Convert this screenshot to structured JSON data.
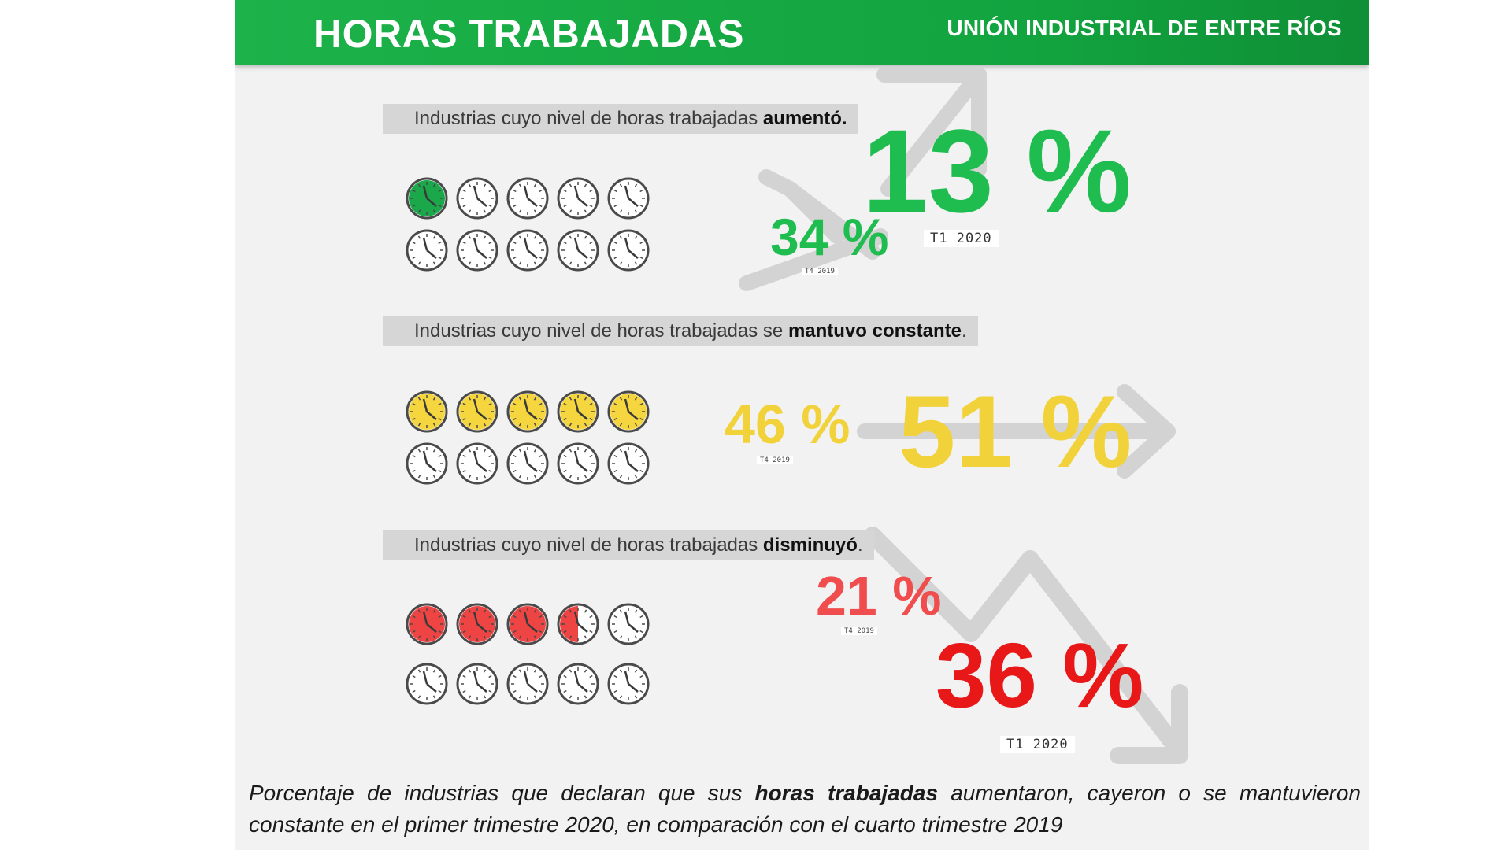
{
  "header": {
    "title": "HORAS TRABAJADAS",
    "organization": "UNIÓN INDUSTRIAL DE ENTRE RÍOS"
  },
  "colors": {
    "header_green": "#1db24a",
    "green": "#1fbd4f",
    "yellow": "#f2d23a",
    "red_prev": "#f04e4e",
    "red_cur": "#e81818",
    "clock_filled_red": "#ef4444",
    "arrow_gray": "#d3d3d3"
  },
  "sections": [
    {
      "label_prefix": "Industrias cuyo nivel de horas trabajadas ",
      "label_bold": "aumentó.",
      "label_suffix": "",
      "clocks_filled": 1,
      "clocks_total": 10,
      "fill_color": "#1aa84a",
      "prev_value": "34 %",
      "prev_period": "T4 2019",
      "cur_value": "13 %",
      "cur_period": "T1 2020",
      "trend": "up"
    },
    {
      "label_prefix": "Industrias cuyo nivel de horas trabajadas se ",
      "label_bold": "mantuvo constante",
      "label_suffix": ".",
      "clocks_filled": 5,
      "clocks_total": 10,
      "fill_color": "#f5d63f",
      "prev_value": "46 %",
      "prev_period": "T4 2019",
      "cur_value": "51 %",
      "cur_period": "",
      "trend": "flat"
    },
    {
      "label_prefix": "Industrias cuyo nivel de horas trabajadas ",
      "label_bold": "disminuyó",
      "label_suffix": ".",
      "clocks_filled": 3.5,
      "clocks_total": 10,
      "fill_color": "#ef4444",
      "prev_value": "21 %",
      "prev_period": "T4 2019",
      "cur_value": "36 %",
      "cur_period": "T1 2020",
      "trend": "down"
    }
  ],
  "caption": {
    "part1": "Porcentaje de industrias que declaran que sus ",
    "bold": "horas trabajadas",
    "part2": " aumentaron, cayeron o se mantuvieron constante en el primer trimestre 2020, en comparación con el cuarto trimestre 2019"
  },
  "chart_data": {
    "type": "table",
    "title": "HORAS TRABAJADAS",
    "columns": [
      "T4 2019",
      "T1 2020"
    ],
    "categories": [
      "aumentó",
      "mantuvo constante",
      "disminuyó"
    ],
    "series": [
      {
        "name": "T4 2019",
        "values": [
          34,
          46,
          21
        ]
      },
      {
        "name": "T1 2020",
        "values": [
          13,
          51,
          36
        ]
      }
    ],
    "unit": "%"
  }
}
